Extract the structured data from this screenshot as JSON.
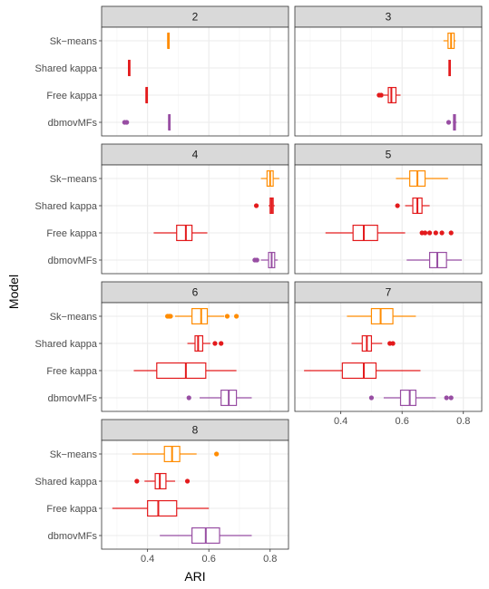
{
  "chart_data": {
    "type": "boxplot",
    "xlabel": "ARI",
    "ylabel": "Model",
    "xlim": [
      0.25,
      0.86
    ],
    "xticks": [
      0.4,
      0.6,
      0.8
    ],
    "xtick_labels": [
      "0.4",
      "0.6",
      "0.8"
    ],
    "categories": [
      "Sk−means",
      "Shared kappa",
      "Free kappa",
      "dbmovMFs"
    ],
    "colors": {
      "Sk−means": "#ff8c00",
      "Shared kappa": "#e31a1c",
      "Free kappa": "#e31a1c",
      "dbmovMFs": "#984ea3"
    },
    "grid": true,
    "panels": [
      {
        "label": "2",
        "boxes": [
          {
            "category": "Sk−means",
            "stats": [
              0.465,
              0.466,
              0.467,
              0.468,
              0.469
            ],
            "outliers": []
          },
          {
            "category": "Shared kappa",
            "stats": [
              0.337,
              0.338,
              0.339,
              0.34,
              0.341
            ],
            "outliers": []
          },
          {
            "category": "Free kappa",
            "stats": [
              0.394,
              0.395,
              0.396,
              0.397,
              0.398
            ],
            "outliers": []
          },
          {
            "category": "dbmovMFs",
            "stats": [
              0.468,
              0.469,
              0.47,
              0.471,
              0.472
            ],
            "outliers": [
              0.325,
              0.332
            ]
          }
        ]
      },
      {
        "label": "3",
        "boxes": [
          {
            "category": "Sk−means",
            "stats": [
              0.735,
              0.75,
              0.76,
              0.77,
              0.775
            ],
            "outliers": []
          },
          {
            "category": "Shared kappa",
            "stats": [
              0.752,
              0.753,
              0.755,
              0.757,
              0.758
            ],
            "outliers": []
          },
          {
            "category": "Free kappa",
            "stats": [
              0.54,
              0.555,
              0.565,
              0.58,
              0.595
            ],
            "outliers": [
              0.525,
              0.532
            ]
          },
          {
            "category": "dbmovMFs",
            "stats": [
              0.766,
              0.768,
              0.77,
              0.774,
              0.778
            ],
            "outliers": [
              0.752
            ]
          }
        ]
      },
      {
        "label": "4",
        "boxes": [
          {
            "category": "Sk−means",
            "stats": [
              0.77,
              0.79,
              0.8,
              0.81,
              0.83
            ],
            "outliers": []
          },
          {
            "category": "Shared kappa",
            "stats": [
              0.795,
              0.8,
              0.805,
              0.81,
              0.815
            ],
            "outliers": [
              0.755
            ]
          },
          {
            "category": "Free kappa",
            "stats": [
              0.42,
              0.495,
              0.525,
              0.545,
              0.595
            ],
            "outliers": []
          },
          {
            "category": "dbmovMFs",
            "stats": [
              0.77,
              0.795,
              0.805,
              0.815,
              0.825
            ],
            "outliers": [
              0.75,
              0.757
            ]
          }
        ]
      },
      {
        "label": "5",
        "boxes": [
          {
            "category": "Sk−means",
            "stats": [
              0.58,
              0.625,
              0.65,
              0.675,
              0.75
            ],
            "outliers": []
          },
          {
            "category": "Shared kappa",
            "stats": [
              0.61,
              0.635,
              0.65,
              0.665,
              0.69
            ],
            "outliers": [
              0.585
            ]
          },
          {
            "category": "Free kappa",
            "stats": [
              0.35,
              0.44,
              0.475,
              0.52,
              0.61
            ],
            "outliers": [
              0.665,
              0.675,
              0.69,
              0.71,
              0.73,
              0.76
            ]
          },
          {
            "category": "dbmovMFs",
            "stats": [
              0.615,
              0.69,
              0.715,
              0.745,
              0.795
            ],
            "outliers": []
          }
        ]
      },
      {
        "label": "6",
        "boxes": [
          {
            "category": "Sk−means",
            "stats": [
              0.49,
              0.545,
              0.575,
              0.595,
              0.65
            ],
            "outliers": [
              0.465,
              0.47,
              0.475,
              0.66,
              0.69
            ]
          },
          {
            "category": "Shared kappa",
            "stats": [
              0.53,
              0.555,
              0.565,
              0.58,
              0.605
            ],
            "outliers": [
              0.62,
              0.64
            ]
          },
          {
            "category": "Free kappa",
            "stats": [
              0.355,
              0.43,
              0.525,
              0.59,
              0.69
            ],
            "outliers": []
          },
          {
            "category": "dbmovMFs",
            "stats": [
              0.57,
              0.64,
              0.665,
              0.69,
              0.74
            ],
            "outliers": [
              0.535
            ]
          }
        ]
      },
      {
        "label": "7",
        "boxes": [
          {
            "category": "Sk−means",
            "stats": [
              0.42,
              0.5,
              0.53,
              0.57,
              0.645
            ],
            "outliers": []
          },
          {
            "category": "Shared kappa",
            "stats": [
              0.435,
              0.47,
              0.485,
              0.5,
              0.535
            ],
            "outliers": [
              0.56,
              0.57
            ]
          },
          {
            "category": "Free kappa",
            "stats": [
              0.28,
              0.405,
              0.475,
              0.515,
              0.66
            ],
            "outliers": []
          },
          {
            "category": "dbmovMFs",
            "stats": [
              0.54,
              0.595,
              0.625,
              0.645,
              0.71
            ],
            "outliers": [
              0.5,
              0.745,
              0.76
            ]
          }
        ]
      },
      {
        "label": "8",
        "boxes": [
          {
            "category": "Sk−means",
            "stats": [
              0.35,
              0.455,
              0.48,
              0.505,
              0.56
            ],
            "outliers": [
              0.625
            ]
          },
          {
            "category": "Shared kappa",
            "stats": [
              0.39,
              0.425,
              0.44,
              0.46,
              0.49
            ],
            "outliers": [
              0.365,
              0.53
            ]
          },
          {
            "category": "Free kappa",
            "stats": [
              0.285,
              0.4,
              0.435,
              0.495,
              0.6
            ],
            "outliers": []
          },
          {
            "category": "dbmovMFs",
            "stats": [
              0.44,
              0.545,
              0.59,
              0.635,
              0.74
            ],
            "outliers": []
          }
        ]
      }
    ]
  }
}
